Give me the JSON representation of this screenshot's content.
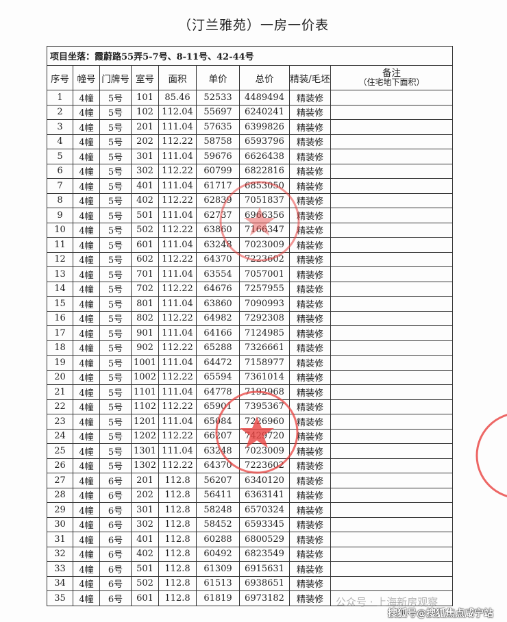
{
  "title": "（汀兰雅苑）一房一价表",
  "location": "项目坐落：霞蔚路55弄5-7号、8-11号、42-44号",
  "headers": [
    "序号",
    "幢号",
    "门牌号",
    "室号",
    "面积",
    "单价",
    "总价",
    "精装/毛坯"
  ],
  "note_header": {
    "main": "备注",
    "sub": "（住宅地下面积）"
  },
  "rows": [
    [
      "1",
      "4幢",
      "5号",
      "101",
      "85.46",
      "52533",
      "4489494",
      "精装修",
      ""
    ],
    [
      "2",
      "4幢",
      "5号",
      "102",
      "112.04",
      "55697",
      "6240241",
      "精装修",
      ""
    ],
    [
      "3",
      "4幢",
      "5号",
      "201",
      "111.04",
      "57635",
      "6399826",
      "精装修",
      ""
    ],
    [
      "4",
      "4幢",
      "5号",
      "202",
      "112.22",
      "58758",
      "6593796",
      "精装修",
      ""
    ],
    [
      "5",
      "4幢",
      "5号",
      "301",
      "111.04",
      "59676",
      "6626438",
      "精装修",
      ""
    ],
    [
      "6",
      "4幢",
      "5号",
      "302",
      "112.22",
      "60799",
      "6822816",
      "精装修",
      ""
    ],
    [
      "7",
      "4幢",
      "5号",
      "401",
      "111.04",
      "61717",
      "6853050",
      "精装修",
      ""
    ],
    [
      "8",
      "4幢",
      "5号",
      "402",
      "112.22",
      "62839",
      "7051837",
      "精装修",
      ""
    ],
    [
      "9",
      "4幢",
      "5号",
      "501",
      "111.04",
      "62737",
      "6966356",
      "精装修",
      ""
    ],
    [
      "10",
      "4幢",
      "5号",
      "502",
      "112.22",
      "63860",
      "7166347",
      "精装修",
      ""
    ],
    [
      "11",
      "4幢",
      "5号",
      "601",
      "111.04",
      "63248",
      "7023009",
      "精装修",
      ""
    ],
    [
      "12",
      "4幢",
      "5号",
      "602",
      "112.22",
      "64370",
      "7223602",
      "精装修",
      ""
    ],
    [
      "13",
      "4幢",
      "5号",
      "701",
      "111.04",
      "63554",
      "7057001",
      "精装修",
      ""
    ],
    [
      "14",
      "4幢",
      "5号",
      "702",
      "112.22",
      "64676",
      "7257955",
      "精装修",
      ""
    ],
    [
      "15",
      "4幢",
      "5号",
      "801",
      "111.04",
      "63860",
      "7090993",
      "精装修",
      ""
    ],
    [
      "16",
      "4幢",
      "5号",
      "802",
      "112.22",
      "64982",
      "7292308",
      "精装修",
      ""
    ],
    [
      "17",
      "4幢",
      "5号",
      "901",
      "111.04",
      "64166",
      "7124985",
      "精装修",
      ""
    ],
    [
      "18",
      "4幢",
      "5号",
      "902",
      "112.22",
      "65288",
      "7326661",
      "精装修",
      ""
    ],
    [
      "19",
      "4幢",
      "5号",
      "1001",
      "111.04",
      "64472",
      "7158977",
      "精装修",
      ""
    ],
    [
      "20",
      "4幢",
      "5号",
      "1002",
      "112.22",
      "65594",
      "7361014",
      "精装修",
      ""
    ],
    [
      "21",
      "4幢",
      "5号",
      "1101",
      "111.04",
      "64778",
      "7192968",
      "精装修",
      ""
    ],
    [
      "22",
      "4幢",
      "5号",
      "1102",
      "112.22",
      "65901",
      "7395367",
      "精装修",
      ""
    ],
    [
      "23",
      "4幢",
      "5号",
      "1201",
      "111.04",
      "65084",
      "7226960",
      "精装修",
      ""
    ],
    [
      "24",
      "4幢",
      "5号",
      "1202",
      "112.22",
      "66207",
      "7429720",
      "精装修",
      ""
    ],
    [
      "25",
      "4幢",
      "5号",
      "1301",
      "111.04",
      "63248",
      "7023009",
      "精装修",
      ""
    ],
    [
      "26",
      "4幢",
      "5号",
      "1302",
      "112.22",
      "64370",
      "7223602",
      "精装修",
      ""
    ],
    [
      "27",
      "4幢",
      "6号",
      "201",
      "112.8",
      "56207",
      "6340120",
      "精装修",
      ""
    ],
    [
      "28",
      "4幢",
      "6号",
      "202",
      "112.8",
      "56411",
      "6363141",
      "精装修",
      ""
    ],
    [
      "29",
      "4幢",
      "6号",
      "301",
      "112.8",
      "58248",
      "6570324",
      "精装修",
      ""
    ],
    [
      "30",
      "4幢",
      "6号",
      "302",
      "112.8",
      "58452",
      "6593345",
      "精装修",
      ""
    ],
    [
      "31",
      "4幢",
      "6号",
      "401",
      "112.8",
      "60288",
      "6800529",
      "精装修",
      ""
    ],
    [
      "32",
      "4幢",
      "6号",
      "402",
      "112.8",
      "60492",
      "6823549",
      "精装修",
      ""
    ],
    [
      "33",
      "4幢",
      "6号",
      "501",
      "112.8",
      "61309",
      "6915631",
      "精装修",
      ""
    ],
    [
      "34",
      "4幢",
      "6号",
      "502",
      "112.8",
      "61513",
      "6938651",
      "精装修",
      ""
    ],
    [
      "35",
      "4幢",
      "6号",
      "601",
      "112.8",
      "61819",
      "6973182",
      "精装修",
      ""
    ]
  ],
  "watermarks": {
    "wechat": "公众号 · 上海新房观察",
    "sohu": "搜狐号@搜狐焦点咸宁站"
  },
  "colors": {
    "stamp": "#e8413f"
  }
}
